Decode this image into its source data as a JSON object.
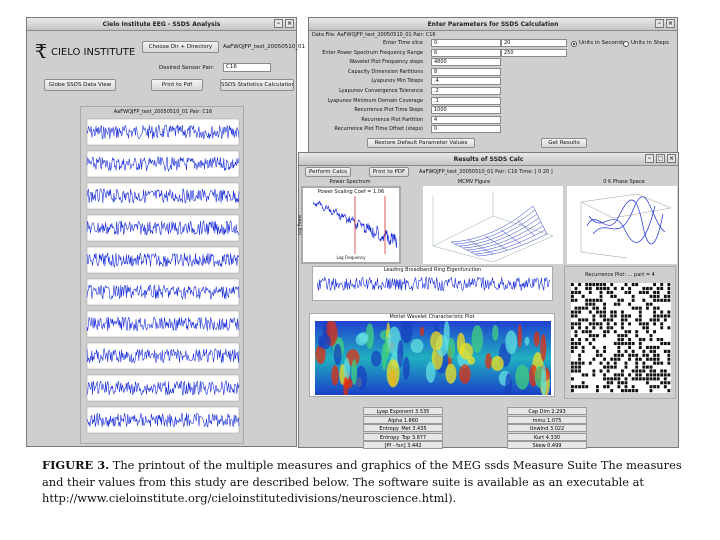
{
  "main_window": {
    "title": "Cielo Institute EEG - SSDS Analysis",
    "logo_text": "CIELO INSTITUTE",
    "choose_dir_label": "Choose Dir + Directory",
    "directory_value": "AaFWQJFP_test_20050510_01",
    "sensor_pair_label": "Desired Sensor Pair:",
    "sensor_pair_value": "C16",
    "globe_button": "Globe SSDS Data View",
    "print_pdf_button": "Print to Pdf",
    "ssds_stats_button": "SSDS Statistics Calculations",
    "plot_title": "AaFWQJFP_test_20050510_01 Pair: C16"
  },
  "params_window": {
    "title": "Enter Parameters for SSDS Calculation",
    "data_file": "Data File: AaFWQJFP_test_20050510_01 Pair: C16",
    "rows": [
      {
        "label": "Enter Time slice",
        "v1": "0",
        "v2": "20"
      },
      {
        "label": "Enter Power Spectrum Frequency Range",
        "v1": "6",
        "v2": "250"
      },
      {
        "label": "Wavelet Plot Frequency steps",
        "v1": "4800",
        "v2": ""
      },
      {
        "label": "Capacity Dimension Partitions",
        "v1": "8",
        "v2": ""
      },
      {
        "label": "Lyapunov Min Tsteps",
        "v1": ".4",
        "v2": ""
      },
      {
        "label": "Lyapunov Convergence Tolerance",
        "v1": ".2",
        "v2": ""
      },
      {
        "label": "Lyapunov Minimum Domain Coverage",
        "v1": ".1",
        "v2": ""
      },
      {
        "label": "Recurrence Plot Time Steps",
        "v1": "1000",
        "v2": ""
      },
      {
        "label": "Recurrence Plot Partition",
        "v1": "4",
        "v2": ""
      },
      {
        "label": "Recurrence Plot Time Offset (steps)",
        "v1": "0",
        "v2": ""
      }
    ],
    "units_seconds": "Units in Seconds",
    "units_steps": "Units in Steps",
    "restore_button": "Restore Default Parameter Values",
    "get_results_button": "Get Results"
  },
  "results_window": {
    "title": "Results of SSDS Calc",
    "perform_button": "Perform Calcs",
    "print_button": "Print to PDF",
    "info": "AaFWQJFP_test_20050510_01 Pair: C16 Time: [ 0 20 ]",
    "power_spectrum_title": "Power Spectrum",
    "power_scaling": "Power Scaling Coef = 1.06",
    "power_ylabel": "Log Power",
    "power_xlabel": "Log Frequency",
    "mcmv_title": "MCMV Figure",
    "phase_title": "0 K Phase Space",
    "eigen_title": "Leading Broadband Ring Eigenfunction",
    "wavelet_title": "Morlet Wavelet Characteristic Plot",
    "recurrence_title": "Recurrence Plot: ... part = 4",
    "stats_left": [
      "Lyap Exponent 3.535",
      "Alpha 1.860",
      "Entropy_Met 3.435",
      "Entropy_Top 3.877",
      "[Pf - fsn] 3.442"
    ],
    "stats_right": [
      "Cap Dim 2.293",
      "mmu 1.075",
      "Unwind 3.022",
      "Kurt 4.330",
      "Skew 0.499"
    ]
  },
  "caption": {
    "figure_label": "FIGURE 3.",
    "text": "The printout of the multiple measures and graphics of the MEG ssds Measure Suite The measures and their values from this study are described below. The software suite is available as an executable at http://www.cieloinstitute.org/cieloinstitutedivisions/neuroscience.html)."
  },
  "colors": {
    "signal": "#0a1fd6",
    "window_bg": "#cfcfcf",
    "wavelet_low": "#1a3fc8",
    "wavelet_high": "#e03010"
  }
}
